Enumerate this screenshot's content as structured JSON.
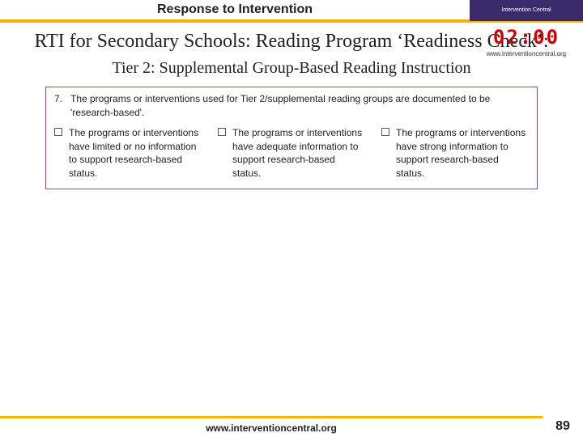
{
  "colors": {
    "header_underline": "#f7b500",
    "header_right_bg": "#3a2a6a",
    "timer_color": "#d00000",
    "content_border": "#c03080",
    "footer_border": "#f7b500",
    "text": "#222222"
  },
  "header": {
    "title": "Response to Intervention",
    "right_label": "Intervention Central"
  },
  "timer": {
    "value": "02:00",
    "url": "www.interventioncentral.org"
  },
  "main": {
    "title": "RTI for Secondary Schools: Reading Program ‘Readiness Check’:",
    "subtitle": "Tier 2: Supplemental Group-Based Reading Instruction"
  },
  "content": {
    "number": "7.",
    "text": "The programs or interventions used for Tier 2/supplemental reading groups are documented to be 'research-based'.",
    "options": [
      "The programs or interventions have limited or no information to support research-based status.",
      "The programs or interventions have adequate information to support research-based status.",
      "The programs or interventions have strong information to support research-based status."
    ]
  },
  "footer": {
    "url": "www.interventioncentral.org",
    "page": "89"
  }
}
